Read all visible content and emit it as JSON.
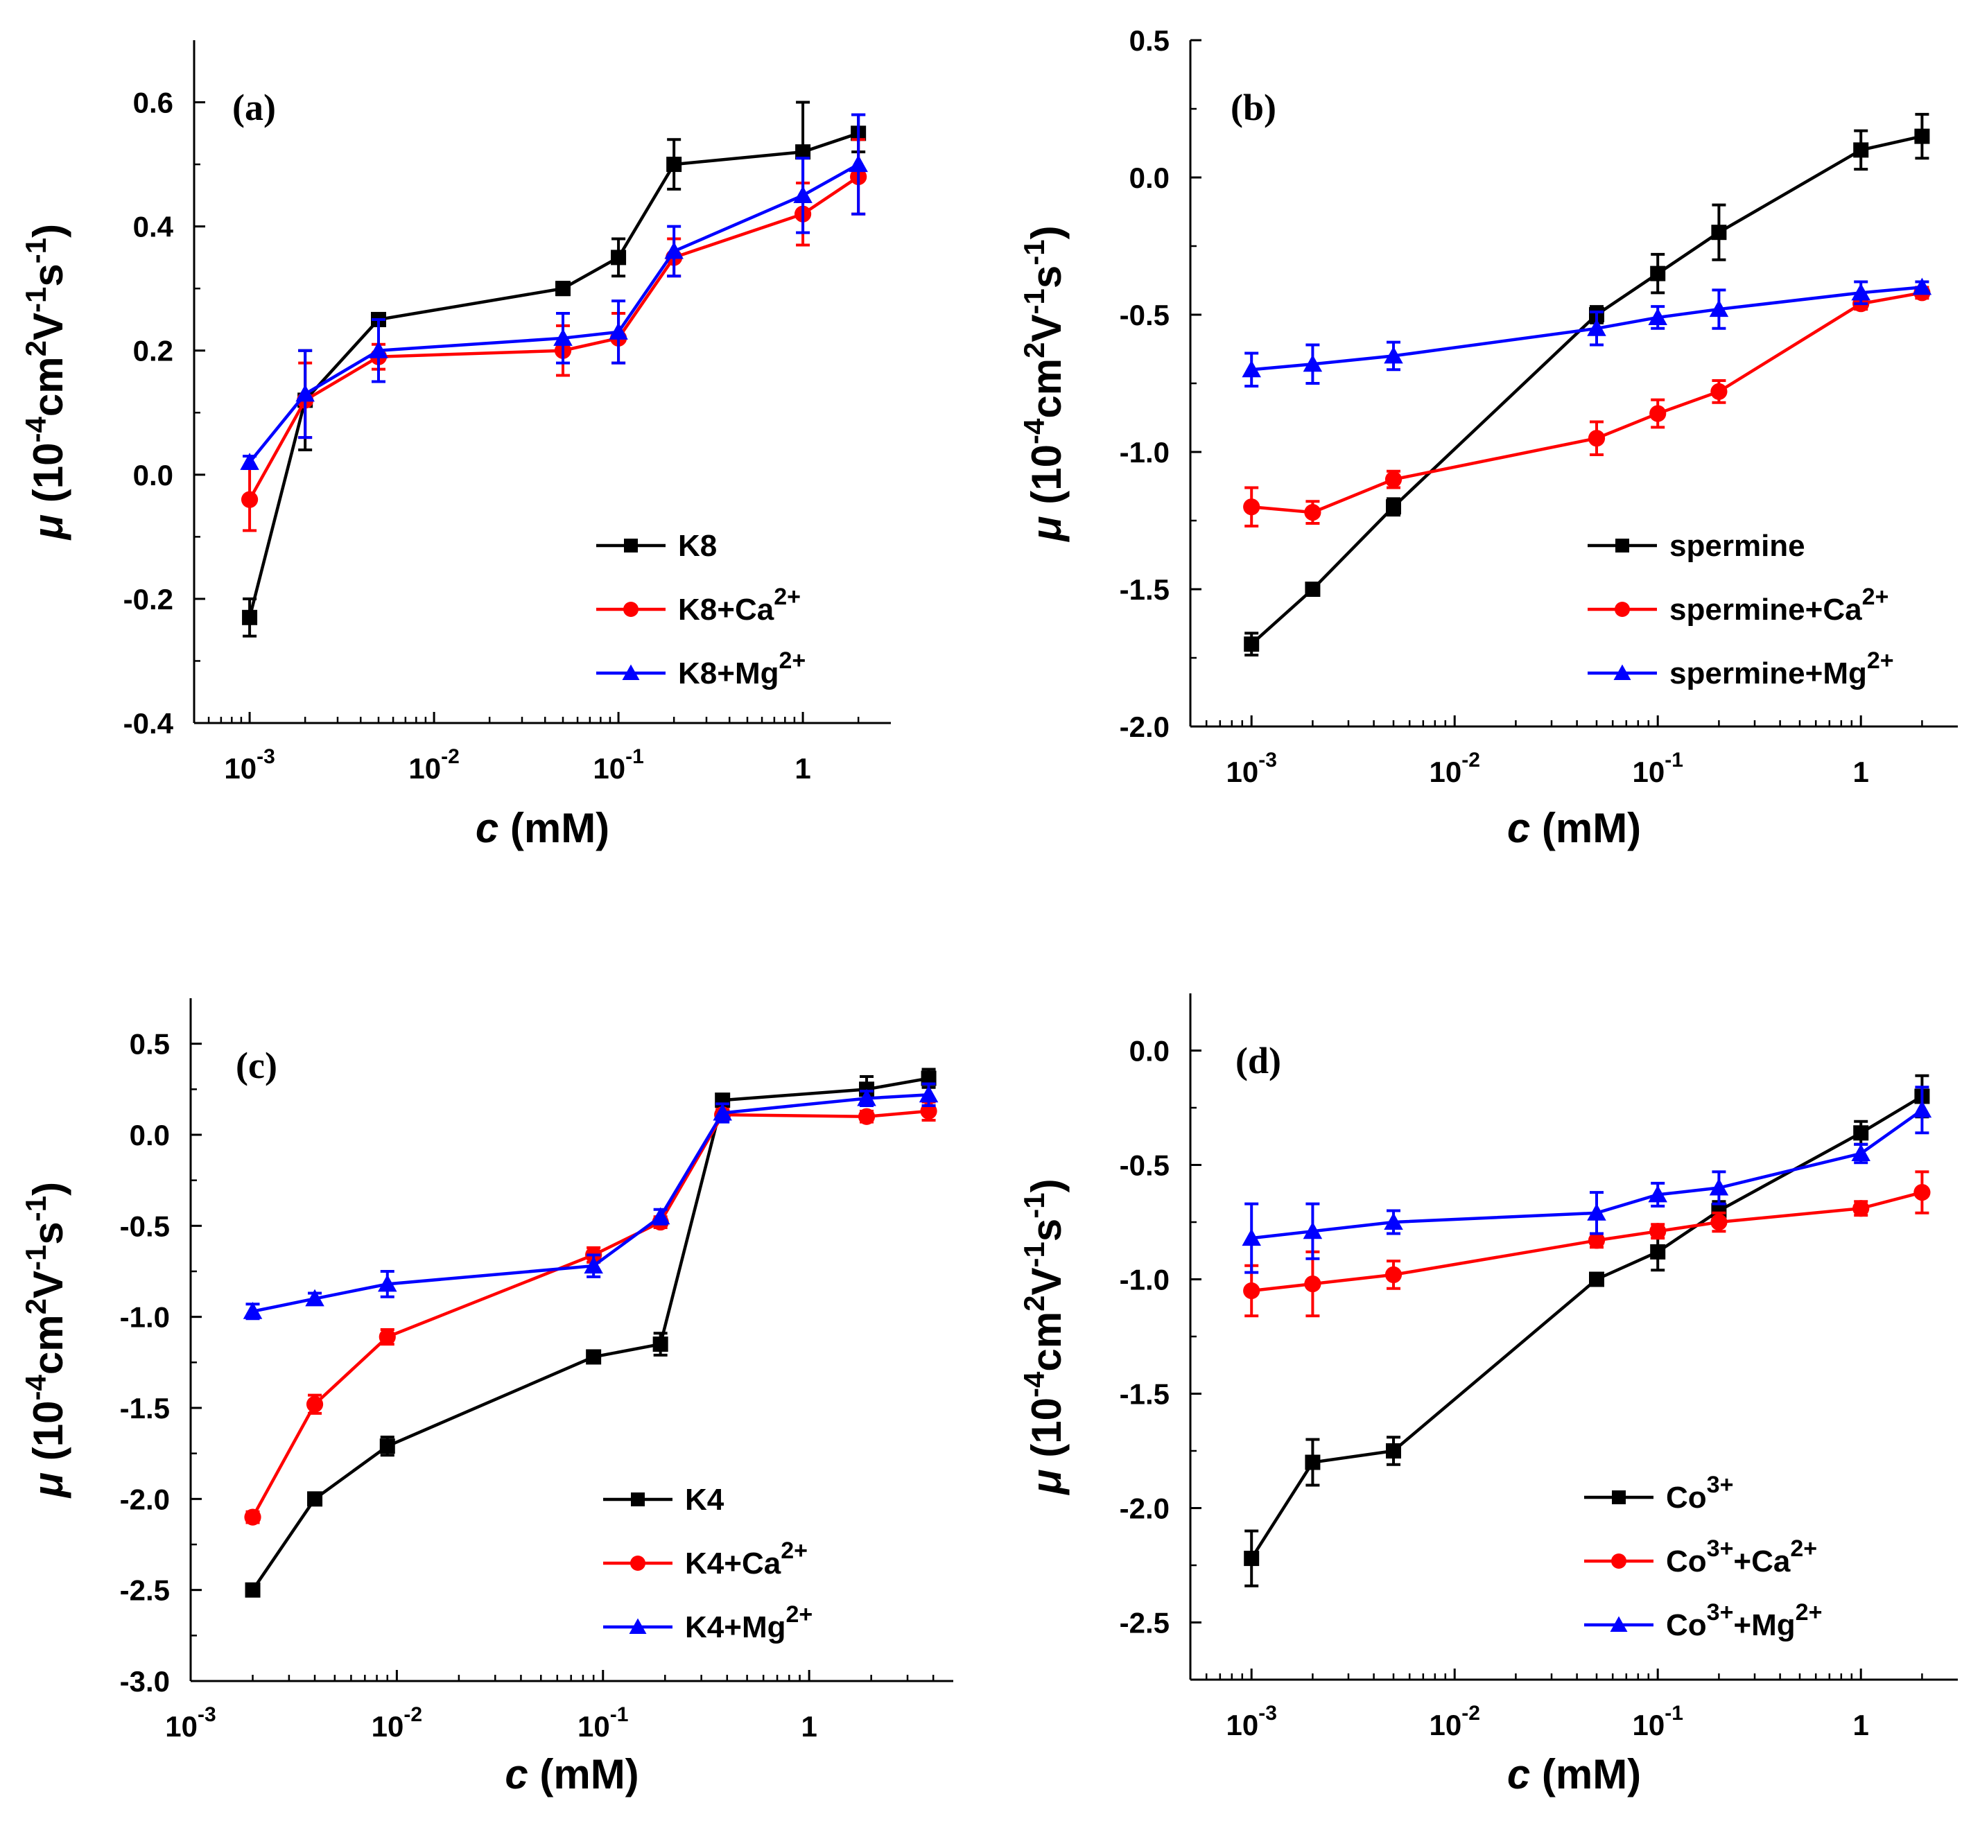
{
  "figure": {
    "description": ""
  },
  "chart_data": [
    {
      "panel_label": "(a)",
      "type": "line",
      "xscale": "log",
      "xlim": [
        0.0005,
        3
      ],
      "ylim": [
        -0.4,
        0.7
      ],
      "xticks": [
        {
          "value": 0.001,
          "base": "10",
          "exp": "-3"
        },
        {
          "value": 0.01,
          "base": "10",
          "exp": "-2"
        },
        {
          "value": 0.1,
          "base": "10",
          "exp": "-1"
        },
        {
          "value": 1,
          "base": "1",
          "exp": ""
        }
      ],
      "yticks": [
        {
          "value": -0.4,
          "label": "-0.4"
        },
        {
          "value": -0.2,
          "label": "-0.2"
        },
        {
          "value": 0.0,
          "label": "0.0"
        },
        {
          "value": 0.2,
          "label": "0.2"
        },
        {
          "value": 0.4,
          "label": "0.4"
        },
        {
          "value": 0.6,
          "label": "0.6"
        }
      ],
      "xlabel": {
        "italic": "c",
        "rest": " (mM)"
      },
      "ylabel": {
        "mu": "μ",
        "p1": " (10",
        "s1": "-4",
        "p2": "cm",
        "s2": "2",
        "p3": "V",
        "s3": "-1",
        "p4": "s",
        "s4": "-1",
        "p5": ")"
      },
      "legend_position": "bottom-right",
      "series": [
        {
          "name": "K8",
          "sup": "",
          "suffix": "",
          "color": "#000000",
          "marker": "square",
          "x": [
            0.001,
            0.002,
            0.005,
            0.05,
            0.1,
            0.2,
            1,
            2
          ],
          "y": [
            -0.23,
            0.12,
            0.25,
            0.3,
            0.35,
            0.5,
            0.52,
            0.55
          ],
          "err": [
            0.03,
            0.08,
            0.01,
            0.01,
            0.03,
            0.04,
            0.08,
            0.03
          ]
        },
        {
          "name": "K8+Ca",
          "sup": "2+",
          "suffix": "",
          "color": "#ff0000",
          "marker": "circle",
          "x": [
            0.001,
            0.002,
            0.005,
            0.05,
            0.1,
            0.2,
            1,
            2
          ],
          "y": [
            -0.04,
            0.12,
            0.19,
            0.2,
            0.22,
            0.35,
            0.42,
            0.48
          ],
          "err": [
            0.05,
            0.06,
            0.02,
            0.04,
            0.04,
            0.03,
            0.05,
            0.06
          ]
        },
        {
          "name": "K8+Mg",
          "sup": "2+",
          "suffix": "",
          "color": "#0000ff",
          "marker": "triangle",
          "x": [
            0.001,
            0.002,
            0.005,
            0.05,
            0.1,
            0.2,
            1,
            2
          ],
          "y": [
            0.02,
            0.13,
            0.2,
            0.22,
            0.23,
            0.36,
            0.45,
            0.5
          ],
          "err": [
            0.01,
            0.07,
            0.05,
            0.04,
            0.05,
            0.04,
            0.06,
            0.08
          ]
        }
      ]
    },
    {
      "panel_label": "(b)",
      "type": "line",
      "xscale": "log",
      "xlim": [
        0.0005,
        3
      ],
      "ylim": [
        -2.0,
        0.5
      ],
      "xticks": [
        {
          "value": 0.001,
          "base": "10",
          "exp": "-3"
        },
        {
          "value": 0.01,
          "base": "10",
          "exp": "-2"
        },
        {
          "value": 0.1,
          "base": "10",
          "exp": "-1"
        },
        {
          "value": 1,
          "base": "1",
          "exp": ""
        }
      ],
      "yticks": [
        {
          "value": -2.0,
          "label": "-2.0"
        },
        {
          "value": -1.5,
          "label": "-1.5"
        },
        {
          "value": -1.0,
          "label": "-1.0"
        },
        {
          "value": -0.5,
          "label": "-0.5"
        },
        {
          "value": 0.0,
          "label": "0.0"
        },
        {
          "value": 0.5,
          "label": "0.5"
        }
      ],
      "xlabel": {
        "italic": "c",
        "rest": " (mM)"
      },
      "ylabel": {
        "mu": "μ",
        "p1": " (10",
        "s1": "-4",
        "p2": "cm",
        "s2": "2",
        "p3": "V",
        "s3": "-1",
        "p4": "s",
        "s4": "-1",
        "p5": ")"
      },
      "legend_position": "bottom-right",
      "series": [
        {
          "name": "spermine",
          "sup": "",
          "suffix": "",
          "color": "#000000",
          "marker": "square",
          "x": [
            0.001,
            0.002,
            0.005,
            0.05,
            0.1,
            0.2,
            1,
            2
          ],
          "y": [
            -1.7,
            -1.5,
            -1.2,
            -0.5,
            -0.35,
            -0.2,
            0.1,
            0.15
          ],
          "err": [
            0.04,
            0.02,
            0.03,
            0.03,
            0.07,
            0.1,
            0.07,
            0.08
          ]
        },
        {
          "name": "spermine+Ca",
          "sup": "2+",
          "suffix": "",
          "color": "#ff0000",
          "marker": "circle",
          "x": [
            0.001,
            0.002,
            0.005,
            0.05,
            0.1,
            0.2,
            1,
            2
          ],
          "y": [
            -1.2,
            -1.22,
            -1.1,
            -0.95,
            -0.86,
            -0.78,
            -0.46,
            -0.42
          ],
          "err": [
            0.07,
            0.04,
            0.03,
            0.06,
            0.05,
            0.04,
            0.02,
            0.02
          ]
        },
        {
          "name": "spermine+Mg",
          "sup": "2+",
          "suffix": "",
          "color": "#0000ff",
          "marker": "triangle",
          "x": [
            0.001,
            0.002,
            0.005,
            0.05,
            0.1,
            0.2,
            1,
            2
          ],
          "y": [
            -0.7,
            -0.68,
            -0.65,
            -0.55,
            -0.51,
            -0.48,
            -0.42,
            -0.4
          ],
          "err": [
            0.06,
            0.07,
            0.05,
            0.06,
            0.04,
            0.07,
            0.04,
            0.02
          ]
        }
      ]
    },
    {
      "panel_label": "(c)",
      "type": "line",
      "xscale": "log",
      "xlim": [
        0.001,
        5
      ],
      "ylim": [
        -3.0,
        0.75
      ],
      "xticks": [
        {
          "value": 0.001,
          "base": "10",
          "exp": "-3"
        },
        {
          "value": 0.01,
          "base": "10",
          "exp": "-2"
        },
        {
          "value": 0.1,
          "base": "10",
          "exp": "-1"
        },
        {
          "value": 1,
          "base": "1",
          "exp": ""
        }
      ],
      "yticks": [
        {
          "value": -3.0,
          "label": "-3.0"
        },
        {
          "value": -2.5,
          "label": "-2.5"
        },
        {
          "value": -2.0,
          "label": "-2.0"
        },
        {
          "value": -1.5,
          "label": "-1.5"
        },
        {
          "value": -1.0,
          "label": "-1.0"
        },
        {
          "value": -0.5,
          "label": "-0.5"
        },
        {
          "value": 0.0,
          "label": "0.0"
        },
        {
          "value": 0.5,
          "label": "0.5"
        }
      ],
      "xlabel": {
        "italic": "c",
        "rest": " (mM)"
      },
      "ylabel": {
        "mu": "μ",
        "p1": " (10",
        "s1": "-4",
        "p2": "cm",
        "s2": "2",
        "p3": "V",
        "s3": "-1",
        "p4": "s",
        "s4": "-1",
        "p5": ")"
      },
      "legend_position": "bottom-right",
      "series": [
        {
          "name": "K4",
          "sup": "",
          "suffix": "",
          "color": "#000000",
          "marker": "square",
          "x": [
            0.002,
            0.004,
            0.009,
            0.09,
            0.19,
            0.38,
            1.9,
            3.8
          ],
          "y": [
            -2.5,
            -2.0,
            -1.71,
            -1.22,
            -1.15,
            0.19,
            0.25,
            0.31
          ],
          "err": [
            0.02,
            0.02,
            0.05,
            0.02,
            0.06,
            0.03,
            0.07,
            0.05
          ]
        },
        {
          "name": "K4+Ca",
          "sup": "2+",
          "suffix": "",
          "color": "#ff0000",
          "marker": "circle",
          "x": [
            0.002,
            0.004,
            0.009,
            0.09,
            0.19,
            0.38,
            1.9,
            3.8
          ],
          "y": [
            -2.1,
            -1.48,
            -1.11,
            -0.66,
            -0.48,
            0.11,
            0.1,
            0.13
          ],
          "err": [
            0.03,
            0.05,
            0.04,
            0.04,
            0.03,
            0.03,
            0.03,
            0.05
          ]
        },
        {
          "name": "K4+Mg",
          "sup": "2+",
          "suffix": "",
          "color": "#0000ff",
          "marker": "triangle",
          "x": [
            0.002,
            0.004,
            0.009,
            0.09,
            0.19,
            0.38,
            1.9,
            3.8
          ],
          "y": [
            -0.97,
            -0.9,
            -0.82,
            -0.72,
            -0.45,
            0.12,
            0.2,
            0.22
          ],
          "err": [
            0.04,
            0.03,
            0.07,
            0.06,
            0.04,
            0.05,
            0.04,
            0.06
          ]
        }
      ]
    },
    {
      "panel_label": "(d)",
      "type": "line",
      "xscale": "log",
      "xlim": [
        0.0005,
        3
      ],
      "ylim": [
        -2.75,
        0.25
      ],
      "xticks": [
        {
          "value": 0.001,
          "base": "10",
          "exp": "-3"
        },
        {
          "value": 0.01,
          "base": "10",
          "exp": "-2"
        },
        {
          "value": 0.1,
          "base": "10",
          "exp": "-1"
        },
        {
          "value": 1,
          "base": "1",
          "exp": ""
        }
      ],
      "yticks": [
        {
          "value": -2.5,
          "label": "-2.5"
        },
        {
          "value": -2.0,
          "label": "-2.0"
        },
        {
          "value": -1.5,
          "label": "-1.5"
        },
        {
          "value": -1.0,
          "label": "-1.0"
        },
        {
          "value": -0.5,
          "label": "-0.5"
        },
        {
          "value": 0.0,
          "label": "0.0"
        }
      ],
      "xlabel": {
        "italic": "c",
        "rest": " (mM)"
      },
      "ylabel": {
        "mu": "μ",
        "p1": " (10",
        "s1": "-4",
        "p2": "cm",
        "s2": "2",
        "p3": "V",
        "s3": "-1",
        "p4": "s",
        "s4": "-1",
        "p5": ")"
      },
      "legend_position": "bottom-right",
      "series": [
        {
          "name": "Co",
          "sup": "3+",
          "suffix": "",
          "color": "#000000",
          "marker": "square",
          "x": [
            0.001,
            0.002,
            0.005,
            0.05,
            0.1,
            0.2,
            1,
            2
          ],
          "y": [
            -2.22,
            -1.8,
            -1.75,
            -1.0,
            -0.88,
            -0.7,
            -0.36,
            -0.2
          ],
          "err": [
            0.12,
            0.1,
            0.06,
            0.01,
            0.08,
            0.04,
            0.05,
            0.09
          ]
        },
        {
          "name": "Co",
          "sup": "3+",
          "suffix": "+Ca",
          "sup2": "2+",
          "color": "#ff0000",
          "marker": "circle",
          "x": [
            0.001,
            0.002,
            0.005,
            0.05,
            0.1,
            0.2,
            1,
            2
          ],
          "y": [
            -1.05,
            -1.02,
            -0.98,
            -0.83,
            -0.79,
            -0.75,
            -0.69,
            -0.62
          ],
          "err": [
            0.11,
            0.14,
            0.06,
            0.03,
            0.03,
            0.04,
            0.03,
            0.09
          ]
        },
        {
          "name": "Co",
          "sup": "3+",
          "suffix": "+Mg",
          "sup2": "2+",
          "color": "#0000ff",
          "marker": "triangle",
          "x": [
            0.001,
            0.002,
            0.005,
            0.05,
            0.1,
            0.2,
            1,
            2
          ],
          "y": [
            -0.82,
            -0.79,
            -0.75,
            -0.71,
            -0.63,
            -0.6,
            -0.45,
            -0.26
          ],
          "err": [
            0.15,
            0.12,
            0.05,
            0.09,
            0.05,
            0.07,
            0.04,
            0.1
          ]
        }
      ]
    }
  ]
}
